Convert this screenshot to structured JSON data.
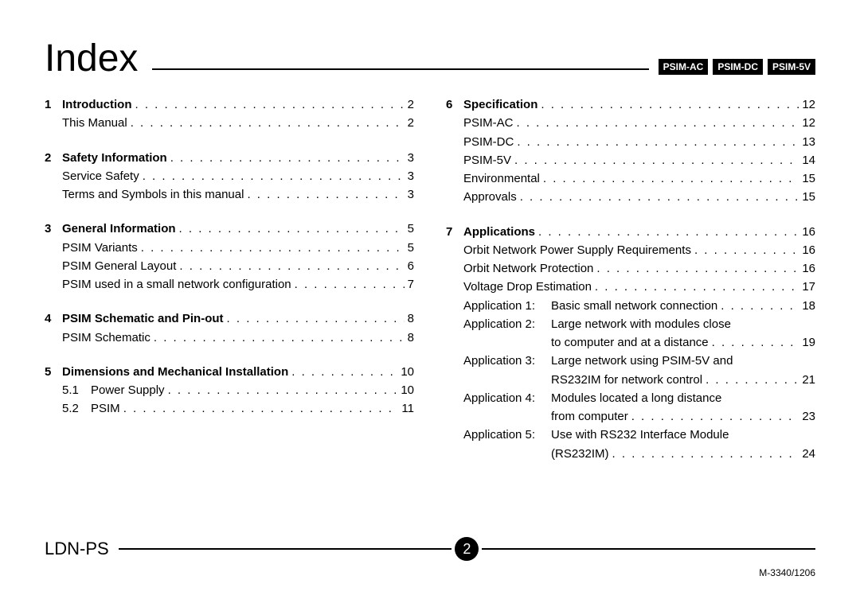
{
  "header": {
    "title": "Index",
    "tags": [
      "PSIM-AC",
      "PSIM-DC",
      "PSIM-5V"
    ]
  },
  "columns": {
    "left": [
      {
        "num": "1",
        "title": "Introduction",
        "page": "2",
        "subs": [
          {
            "label": "This Manual",
            "page": "2"
          }
        ]
      },
      {
        "num": "2",
        "title": "Safety Information",
        "page": "3",
        "subs": [
          {
            "label": "Service Safety",
            "page": "3"
          },
          {
            "label": "Terms and Symbols in this manual",
            "page": "3"
          }
        ]
      },
      {
        "num": "3",
        "title": "General Information",
        "page": "5",
        "subs": [
          {
            "label": "PSIM Variants",
            "page": "5"
          },
          {
            "label": "PSIM General Layout",
            "page": "6"
          },
          {
            "label": "PSIM used in a small network configuration",
            "page": "7"
          }
        ]
      },
      {
        "num": "4",
        "title": "PSIM Schematic and Pin-out",
        "page": "8",
        "subs": [
          {
            "label": "PSIM Schematic",
            "page": "8"
          }
        ]
      },
      {
        "num": "5",
        "title": "Dimensions and Mechanical Installation",
        "page": "10",
        "numbered_subs": [
          {
            "num": "5.1",
            "label": "Power Supply",
            "page": "10"
          },
          {
            "num": "5.2",
            "label": "PSIM",
            "page": "11"
          }
        ]
      }
    ],
    "right": [
      {
        "num": "6",
        "title": "Specification",
        "page": "12",
        "subs": [
          {
            "label": "PSIM-AC",
            "page": "12"
          },
          {
            "label": "PSIM-DC",
            "page": "13"
          },
          {
            "label": "PSIM-5V",
            "page": "14"
          },
          {
            "label": "Environmental",
            "page": "15"
          },
          {
            "label": "Approvals",
            "page": "15"
          }
        ]
      },
      {
        "num": "7",
        "title": "Applications",
        "page": "16",
        "subs": [
          {
            "label": "Orbit Network Power Supply Requirements",
            "page": "16"
          },
          {
            "label": "Orbit Network Protection",
            "page": "16"
          },
          {
            "label": "Voltage Drop Estimation",
            "page": "17"
          }
        ],
        "apps": [
          {
            "label": "Application 1:",
            "lines": [
              {
                "text": "Basic small network connection",
                "page": "18"
              }
            ]
          },
          {
            "label": "Application 2:",
            "lines": [
              {
                "text": "Large network with modules close"
              },
              {
                "text": "to computer and at a distance",
                "page": "19"
              }
            ]
          },
          {
            "label": "Application 3:",
            "lines": [
              {
                "text": "Large network using PSIM-5V and"
              },
              {
                "text": "RS232IM for network control",
                "page": "21"
              }
            ]
          },
          {
            "label": "Application 4:",
            "lines": [
              {
                "text": "Modules located a long distance"
              },
              {
                "text": "from computer",
                "page": "23"
              }
            ]
          },
          {
            "label": "Application 5:",
            "lines": [
              {
                "text": "Use with RS232 Interface Module"
              },
              {
                "text": "(RS232IM)",
                "page": "24"
              }
            ]
          }
        ]
      }
    ]
  },
  "footer": {
    "left_label": "LDN-PS",
    "page_number": "2",
    "doc_id": "M-3340/1206"
  }
}
